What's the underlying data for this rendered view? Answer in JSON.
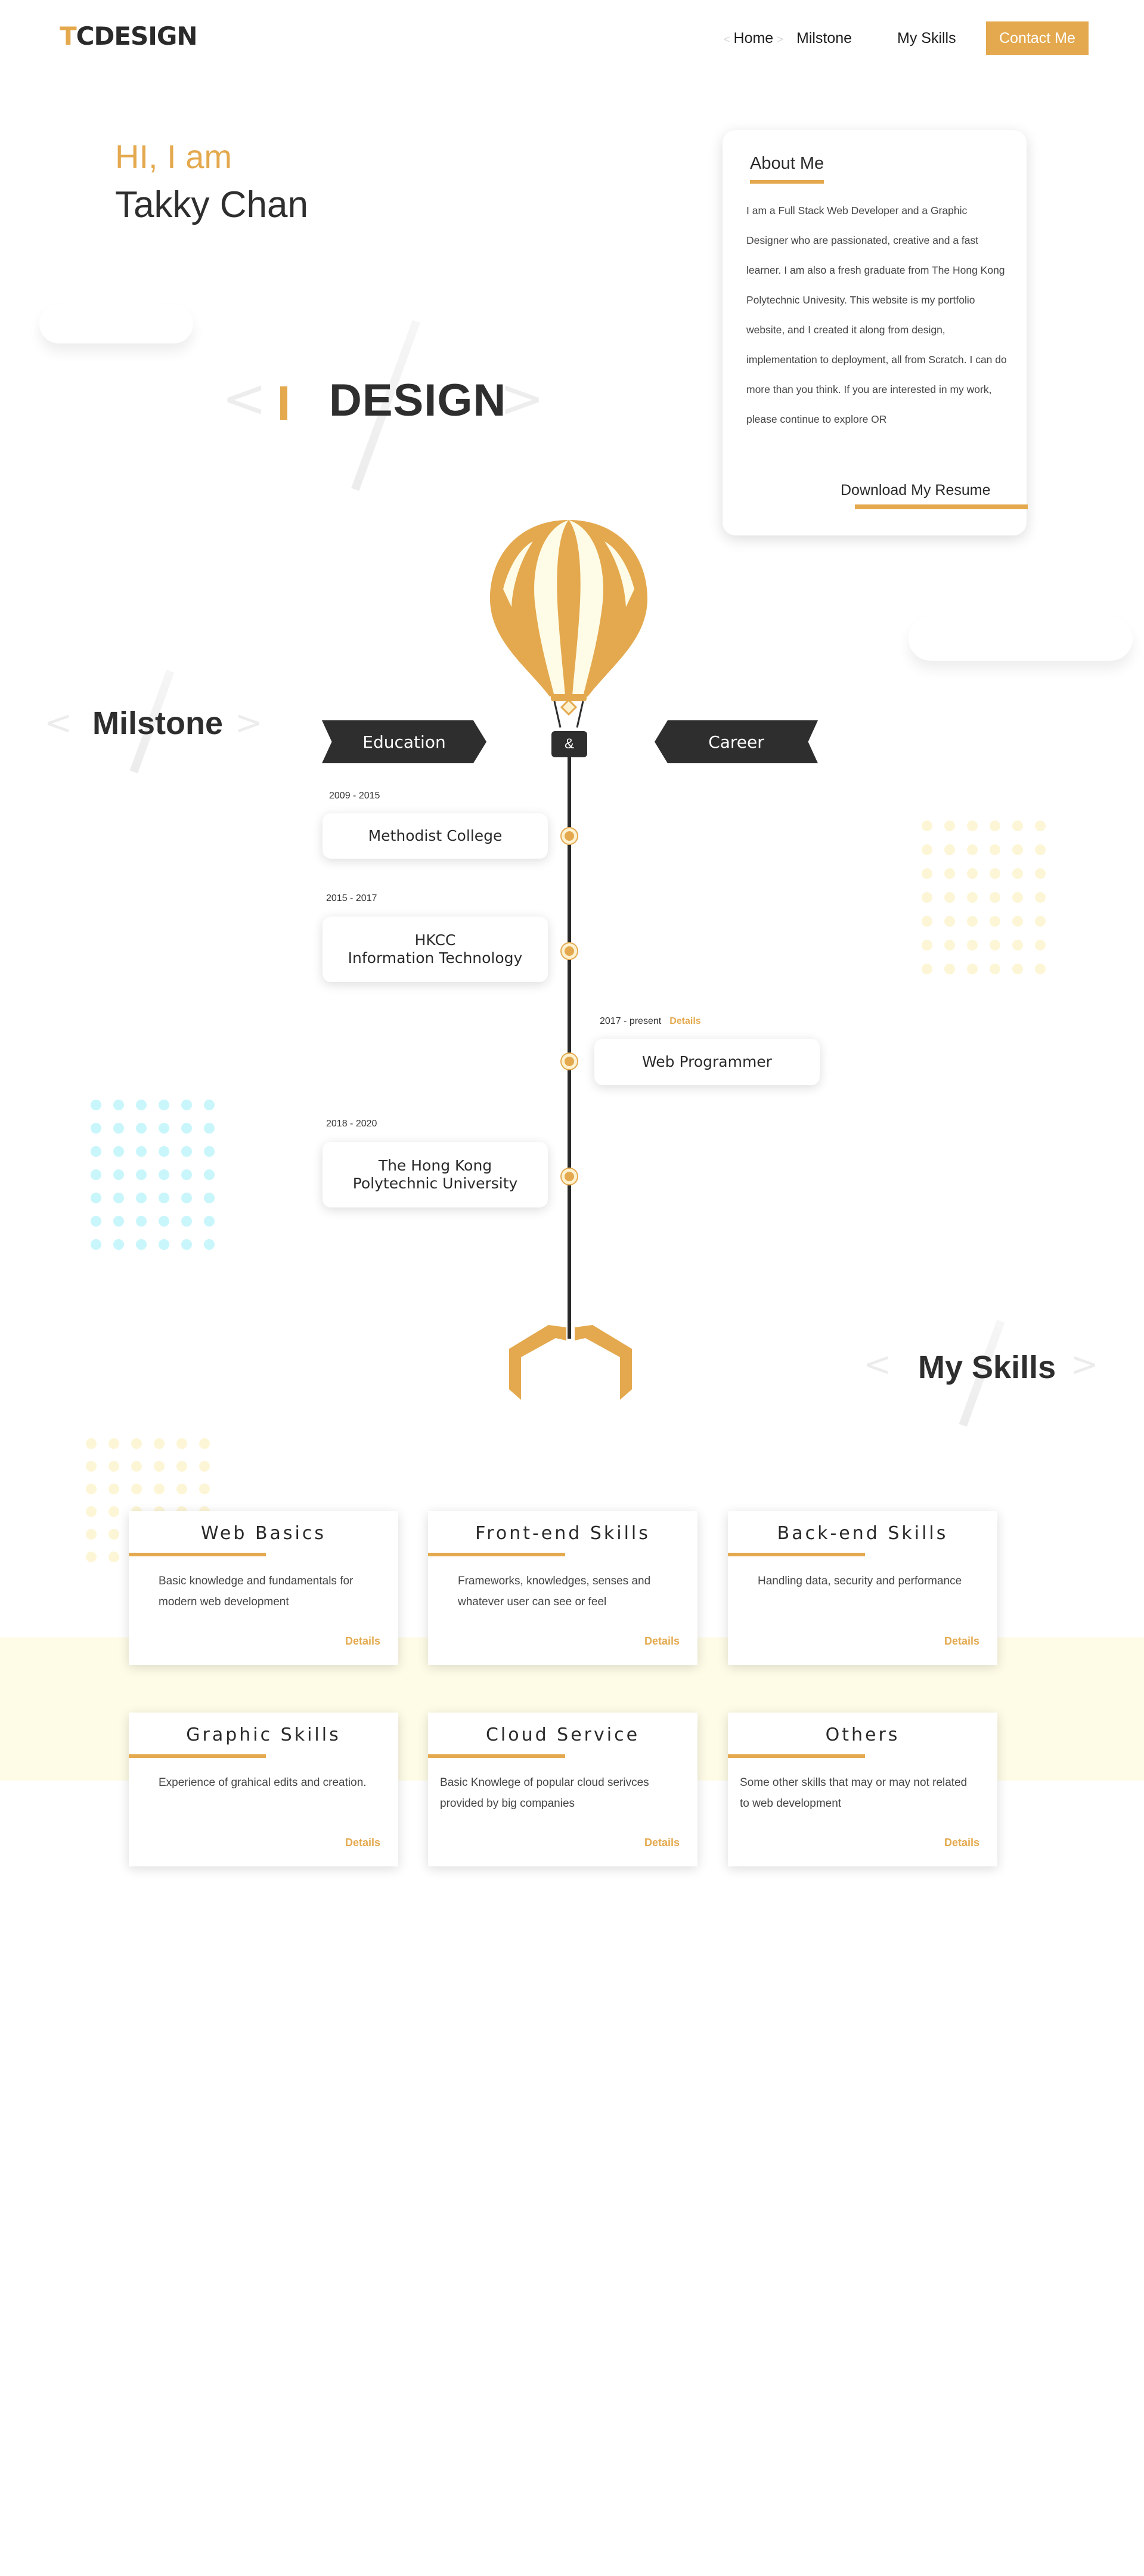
{
  "nav": {
    "logo_t": "T",
    "logo_rest": "CDESIGN",
    "home": "Home",
    "milestone": "Milstone",
    "skills": "My Skills",
    "contact": "Contact Me"
  },
  "hero": {
    "greeting": "HI, I am",
    "name": "Takky Chan",
    "role_word": "DESIGN"
  },
  "about": {
    "title": "About Me",
    "body": "I am a Full Stack Web Developer and a Graphic Designer who are passionated, creative and a fast learner. I am also a fresh graduate from The Hong Kong Polytechnic Univesity. This website is my portfolio website, and I created it along from design, implementation to deployment, all from Scratch. I can do more than you think. If you are interested in my work, please continue to explore  OR",
    "resume": "Download My Resume"
  },
  "milestone": {
    "title": "Milstone",
    "education": "Education",
    "career": "Career",
    "basket": "&",
    "items": [
      {
        "date": "2009 - 2015",
        "line1": "Methodist College",
        "line2": ""
      },
      {
        "date": "2015 - 2017",
        "line1": "HKCC",
        "line2": "Information Technology"
      },
      {
        "date": "2017 - present",
        "line1": "Web Programmer",
        "line2": "",
        "details": "Details"
      },
      {
        "date": "2018 - 2020",
        "line1": "The Hong Kong",
        "line2": "Polytechnic University"
      }
    ]
  },
  "skills": {
    "title": "My Skills",
    "cards": [
      {
        "title": "Web Basics",
        "desc": "Basic knowledge and fundamentals for modern web development",
        "details": "Details"
      },
      {
        "title": "Front-end Skills",
        "desc": "Frameworks, knowledges, senses and whatever user can see or feel",
        "details": "Details"
      },
      {
        "title": "Back-end Skills",
        "desc": "Handling data, security and performance",
        "details": "Details"
      },
      {
        "title": "Graphic Skills",
        "desc": "Experience of grahical edits and creation.",
        "details": "Details"
      },
      {
        "title": "Cloud Service",
        "desc": "Basic Knowlege of popular cloud serivces provided by big companies",
        "details": "Details"
      },
      {
        "title": "Others",
        "desc": "Some other skills that  may or may not related to web development",
        "details": "Details"
      }
    ]
  },
  "colors": {
    "accent": "#e4a94e",
    "dark": "#2e2e2e",
    "band": "#fefce6",
    "dots_yellow": "#fdf6d6",
    "dots_cyan": "#c9f6fb"
  }
}
